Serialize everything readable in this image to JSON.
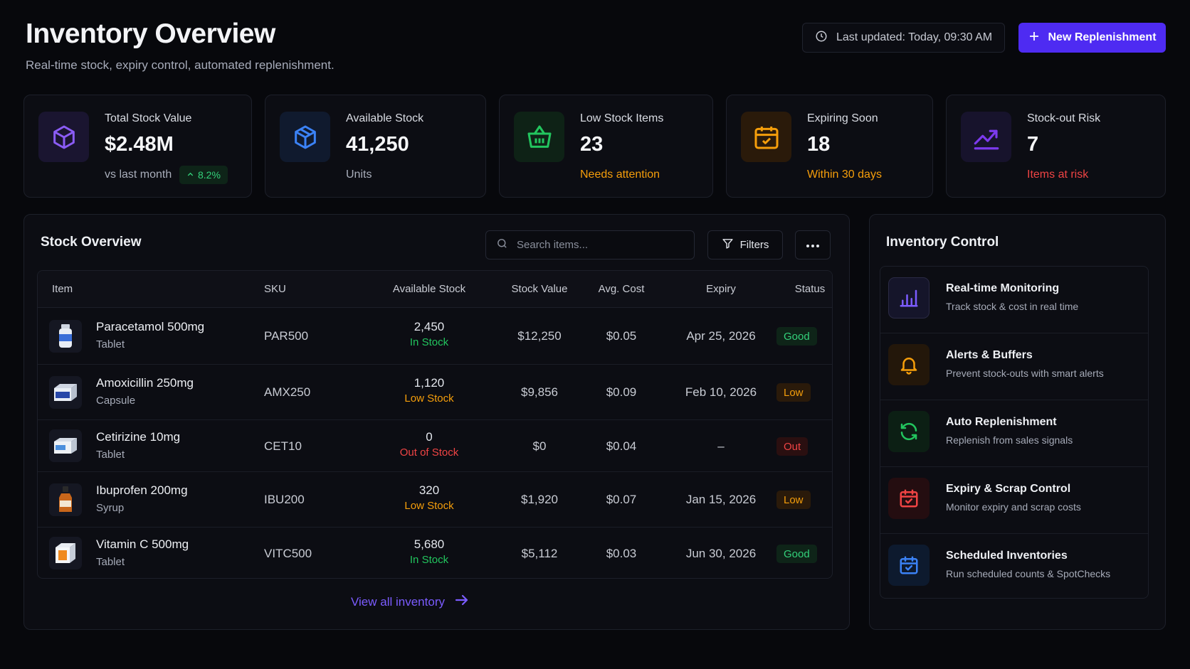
{
  "header": {
    "title": "Inventory Overview",
    "subtitle": "Real-time stock, expiry control, automated replenishment.",
    "last_updated": "Last updated: Today, 09:30 AM",
    "new_button": "New Replenishment"
  },
  "stats": [
    {
      "label": "Total Stock Value",
      "value": "$2.48M",
      "sub": "vs last month",
      "trend": "8.2%",
      "icon": "cube-icon",
      "color": "#8b5cf6"
    },
    {
      "label": "Available Stock",
      "value": "41,250",
      "sub": "Units",
      "icon": "box-icon",
      "color": "#3b82f6"
    },
    {
      "label": "Low Stock Items",
      "value": "23",
      "sub": "Needs attention",
      "icon": "basket-icon",
      "color": "#22c55e"
    },
    {
      "label": "Expiring Soon",
      "value": "18",
      "sub": "Within 30 days",
      "icon": "calendar-icon",
      "color": "#f59e0b"
    },
    {
      "label": "Stock-out Risk",
      "value": "7",
      "sub": "Items at risk",
      "icon": "trend-up-icon",
      "color": "#7c3aed"
    }
  ],
  "stock": {
    "title": "Stock Overview",
    "search_placeholder": "Search items...",
    "filters_label": "Filters",
    "columns": [
      "Item",
      "SKU",
      "Available Stock",
      "Stock Value",
      "Avg. Cost",
      "Expiry",
      "Status"
    ],
    "rows": [
      {
        "name": "Paracetamol 500mg",
        "type": "Tablet",
        "sku": "PAR500",
        "qty": "2,450",
        "state": "In Stock",
        "value": "$12,250",
        "cost": "$0.05",
        "expiry": "Apr 25, 2026",
        "status": "Good"
      },
      {
        "name": "Amoxicillin 250mg",
        "type": "Capsule",
        "sku": "AMX250",
        "qty": "1,120",
        "state": "Low Stock",
        "value": "$9,856",
        "cost": "$0.09",
        "expiry": "Feb 10, 2026",
        "status": "Low"
      },
      {
        "name": "Cetirizine 10mg",
        "type": "Tablet",
        "sku": "CET10",
        "qty": "0",
        "state": "Out of Stock",
        "value": "$0",
        "cost": "$0.04",
        "expiry": "–",
        "status": "Out"
      },
      {
        "name": "Ibuprofen 200mg",
        "type": "Syrup",
        "sku": "IBU200",
        "qty": "320",
        "state": "Low Stock",
        "value": "$1,920",
        "cost": "$0.07",
        "expiry": "Jan 15, 2026",
        "status": "Low"
      },
      {
        "name": "Vitamin C 500mg",
        "type": "Tablet",
        "sku": "VITC500",
        "qty": "5,680",
        "state": "In Stock",
        "value": "$5,112",
        "cost": "$0.03",
        "expiry": "Jun 30, 2026",
        "status": "Good"
      }
    ],
    "view_all": "View all inventory"
  },
  "control": {
    "title": "Inventory Control",
    "items": [
      {
        "title": "Real-time Monitoring",
        "sub": "Track stock & cost in real time",
        "icon": "bar-chart-icon",
        "color": "#7c5cff"
      },
      {
        "title": "Alerts & Buffers",
        "sub": "Prevent stock-outs with smart alerts",
        "icon": "bell-icon",
        "color": "#f59e0b"
      },
      {
        "title": "Auto Replenishment",
        "sub": "Replenish from sales signals",
        "icon": "refresh-icon",
        "color": "#22c55e"
      },
      {
        "title": "Expiry & Scrap Control",
        "sub": "Monitor expiry and scrap costs",
        "icon": "calendar-check-icon",
        "color": "#ef4444"
      },
      {
        "title": "Scheduled Inventories",
        "sub": "Run scheduled counts & SpotChecks",
        "icon": "calendar-check-icon",
        "color": "#3b82f6"
      }
    ]
  }
}
